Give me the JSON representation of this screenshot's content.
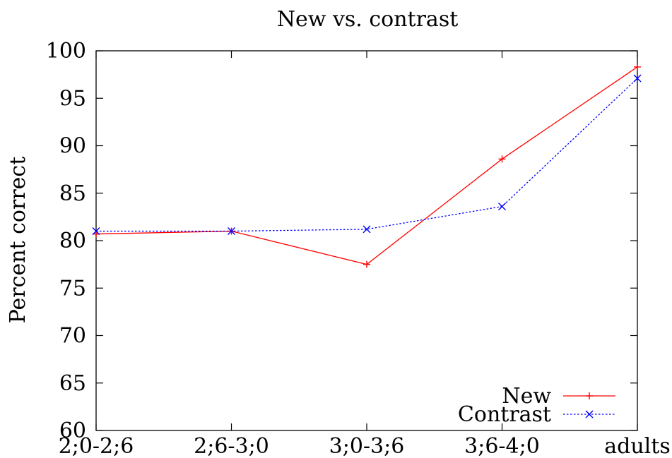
{
  "chart_data": {
    "type": "line",
    "title": "New vs. contrast",
    "xlabel": "",
    "ylabel": "Percent correct",
    "categories": [
      "2;0-2;6",
      "2;6-3;0",
      "3;0-3;6",
      "3;6-4;0",
      "adults"
    ],
    "ylim": [
      60,
      100
    ],
    "yticks": [
      60,
      65,
      70,
      75,
      80,
      85,
      90,
      95,
      100
    ],
    "grid": false,
    "legend_position": "bottom-right",
    "series": [
      {
        "name": "New",
        "values": [
          80.7,
          81.0,
          77.5,
          88.6,
          98.3
        ],
        "color": "#ff0000",
        "marker": "plus",
        "dash": "solid"
      },
      {
        "name": "Contrast",
        "values": [
          81.0,
          81.0,
          81.2,
          83.6,
          97.1
        ],
        "color": "#0000ff",
        "marker": "cross",
        "dash": "dotted"
      }
    ]
  }
}
